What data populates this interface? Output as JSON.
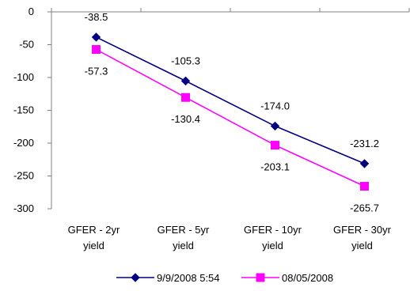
{
  "chart_data": {
    "type": "line",
    "categories": [
      [
        "GFER - 2yr",
        "yield"
      ],
      [
        "GFER - 5yr",
        "yield"
      ],
      [
        "GFER - 10yr",
        "yield"
      ],
      [
        "GFER - 30yr",
        "yield"
      ]
    ],
    "ylim": [
      -300,
      0
    ],
    "yticks": [
      0,
      -50,
      -100,
      -150,
      -200,
      -250,
      -300
    ],
    "ytick_labels": [
      "0",
      "-50",
      "-100",
      "-150",
      "-200",
      "-250",
      "-300"
    ],
    "grid": false,
    "legend_position": "bottom",
    "series": [
      {
        "name": "9/9/2008 5:54",
        "values": [
          -38.5,
          -105.3,
          -174.0,
          -231.2
        ],
        "labels": [
          "-38.5",
          "-105.3",
          "-174.0",
          "-231.2"
        ],
        "color": "#000080",
        "marker": "diamond"
      },
      {
        "name": "08/05/2008",
        "values": [
          -57.3,
          -130.4,
          -203.1,
          -265.7
        ],
        "labels": [
          "-57.3",
          "-130.4",
          "-203.1",
          "-265.7"
        ],
        "color": "#ff00ff",
        "marker": "square"
      }
    ]
  }
}
